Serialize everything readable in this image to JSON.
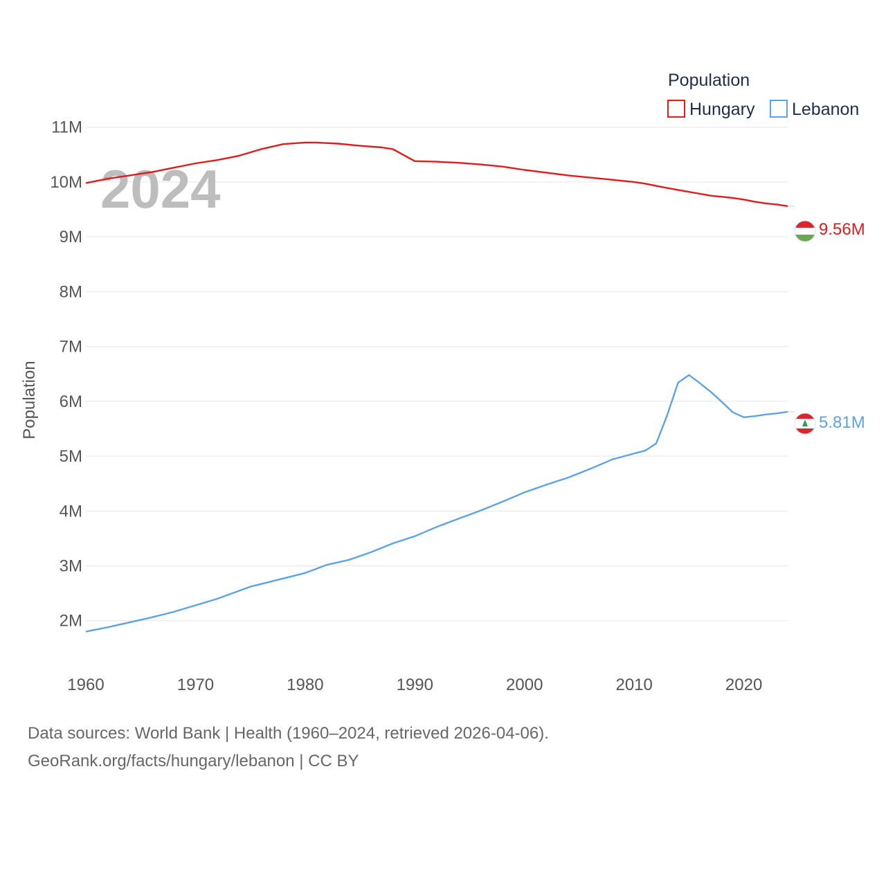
{
  "chart_data": {
    "type": "line",
    "year_label": "2024",
    "ylabel": "Population",
    "ylim": [
      1100000,
      11400000
    ],
    "xlim": [
      1960,
      2024
    ],
    "y_ticks": [
      {
        "value": 2000000,
        "label": "2M"
      },
      {
        "value": 3000000,
        "label": "3M"
      },
      {
        "value": 4000000,
        "label": "4M"
      },
      {
        "value": 5000000,
        "label": "5M"
      },
      {
        "value": 6000000,
        "label": "6M"
      },
      {
        "value": 7000000,
        "label": "7M"
      },
      {
        "value": 8000000,
        "label": "8M"
      },
      {
        "value": 9000000,
        "label": "9M"
      },
      {
        "value": 10000000,
        "label": "10M"
      },
      {
        "value": 11000000,
        "label": "11M"
      }
    ],
    "x_ticks": [
      {
        "value": 1960,
        "label": "1960"
      },
      {
        "value": 1970,
        "label": "1970"
      },
      {
        "value": 1980,
        "label": "1980"
      },
      {
        "value": 1990,
        "label": "1990"
      },
      {
        "value": 2000,
        "label": "2000"
      },
      {
        "value": 2010,
        "label": "2010"
      },
      {
        "value": 2020,
        "label": "2020"
      }
    ],
    "legend": {
      "title": "Population",
      "position": "top-right"
    },
    "series": [
      {
        "name": "Hungary",
        "color": "#e31a1c",
        "end_label": "9.56M",
        "points": [
          [
            1960,
            9980000
          ],
          [
            1962,
            10060000
          ],
          [
            1964,
            10120000
          ],
          [
            1966,
            10180000
          ],
          [
            1968,
            10260000
          ],
          [
            1970,
            10340000
          ],
          [
            1972,
            10400000
          ],
          [
            1974,
            10480000
          ],
          [
            1976,
            10600000
          ],
          [
            1978,
            10690000
          ],
          [
            1980,
            10720000
          ],
          [
            1981,
            10720000
          ],
          [
            1983,
            10700000
          ],
          [
            1985,
            10660000
          ],
          [
            1987,
            10630000
          ],
          [
            1988,
            10600000
          ],
          [
            1990,
            10380000
          ],
          [
            1992,
            10370000
          ],
          [
            1994,
            10350000
          ],
          [
            1996,
            10320000
          ],
          [
            1998,
            10280000
          ],
          [
            2000,
            10220000
          ],
          [
            2002,
            10170000
          ],
          [
            2004,
            10120000
          ],
          [
            2006,
            10080000
          ],
          [
            2008,
            10040000
          ],
          [
            2010,
            10000000
          ],
          [
            2011,
            9970000
          ],
          [
            2013,
            9890000
          ],
          [
            2015,
            9820000
          ],
          [
            2017,
            9750000
          ],
          [
            2019,
            9710000
          ],
          [
            2020,
            9680000
          ],
          [
            2021,
            9640000
          ],
          [
            2022,
            9610000
          ],
          [
            2023,
            9590000
          ],
          [
            2024,
            9560000
          ]
        ]
      },
      {
        "name": "Lebanon",
        "color": "#5ba3e6",
        "end_label": "5.81M",
        "points": [
          [
            1960,
            1800000
          ],
          [
            1962,
            1880000
          ],
          [
            1964,
            1970000
          ],
          [
            1966,
            2060000
          ],
          [
            1968,
            2160000
          ],
          [
            1970,
            2280000
          ],
          [
            1972,
            2400000
          ],
          [
            1975,
            2620000
          ],
          [
            1977,
            2720000
          ],
          [
            1980,
            2870000
          ],
          [
            1982,
            3020000
          ],
          [
            1984,
            3110000
          ],
          [
            1986,
            3250000
          ],
          [
            1988,
            3410000
          ],
          [
            1990,
            3540000
          ],
          [
            1992,
            3710000
          ],
          [
            1994,
            3860000
          ],
          [
            1996,
            4010000
          ],
          [
            1998,
            4170000
          ],
          [
            2000,
            4340000
          ],
          [
            2002,
            4480000
          ],
          [
            2004,
            4610000
          ],
          [
            2006,
            4770000
          ],
          [
            2008,
            4940000
          ],
          [
            2010,
            5050000
          ],
          [
            2011,
            5100000
          ],
          [
            2012,
            5230000
          ],
          [
            2013,
            5740000
          ],
          [
            2014,
            6340000
          ],
          [
            2015,
            6480000
          ],
          [
            2016,
            6330000
          ],
          [
            2017,
            6170000
          ],
          [
            2018,
            5990000
          ],
          [
            2019,
            5800000
          ],
          [
            2020,
            5710000
          ],
          [
            2021,
            5730000
          ],
          [
            2022,
            5760000
          ],
          [
            2023,
            5780000
          ],
          [
            2024,
            5810000
          ]
        ]
      }
    ]
  },
  "footer": {
    "line1": "Data sources: World Bank | Health (1960–2024, retrieved 2026-04-06).",
    "line2": "GeoRank.org/facts/hungary/lebanon | CC BY"
  }
}
